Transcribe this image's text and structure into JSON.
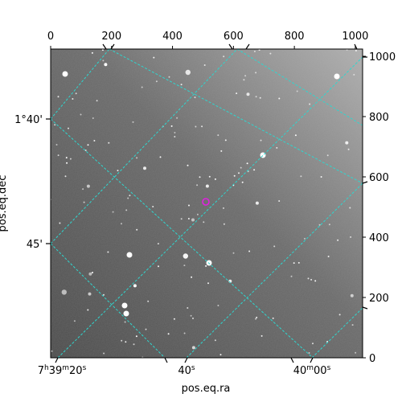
{
  "image": {
    "description": "grayscale astronomical star field with equatorial coordinate grid overlay",
    "grid_color": "#2fd6cf",
    "marker_color": "#e020e0",
    "marker_shape": "circle-icon",
    "background_gradient": [
      "#4a4a4a",
      "#a9a9a9"
    ]
  },
  "pixel_axes": {
    "top_ticks": [
      "0",
      "200",
      "400",
      "600",
      "800",
      "1000"
    ],
    "right_ticks": [
      "0",
      "200",
      "400",
      "600",
      "800",
      "1000"
    ]
  },
  "world_axes": {
    "bottom_ticks": [
      {
        "h": "7",
        "hs": "h",
        "m": "39",
        "ms": "m",
        "s": "20",
        "ss": "s"
      },
      {
        "s": "40",
        "ss": "s"
      },
      {
        "m": "40",
        "ms": "m",
        "s": "00",
        "ss": "s"
      }
    ],
    "left_ticks": [
      "1°40'",
      "45'"
    ],
    "xlabel": "pos.eq.ra",
    "ylabel": "pos.eq.dec"
  }
}
